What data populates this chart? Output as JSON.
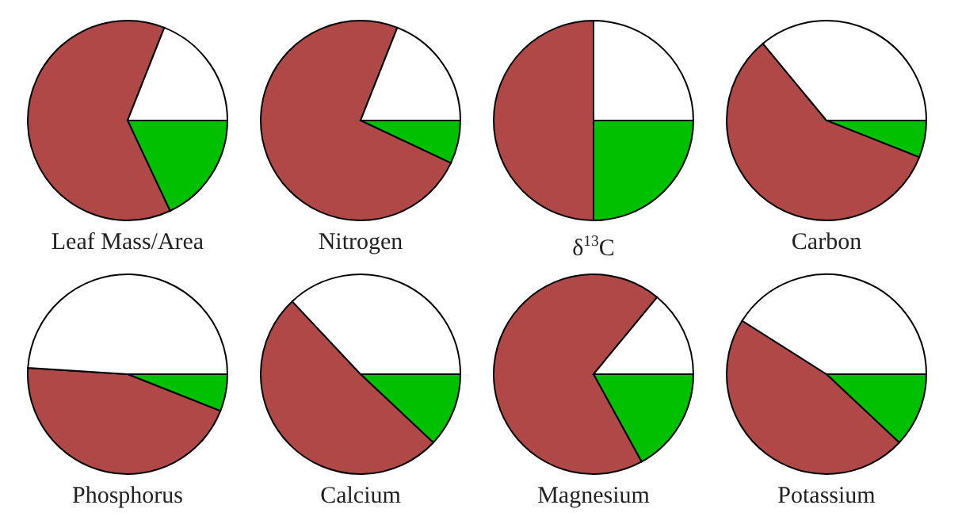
{
  "chart_data": [
    {
      "type": "pie",
      "title": "Leaf Mass/Area",
      "categories": [
        null,
        null,
        null
      ],
      "values": [
        18,
        63,
        19
      ],
      "colors": [
        "#00c000",
        "#b04848",
        "#ffffff"
      ]
    },
    {
      "type": "pie",
      "title": "Nitrogen",
      "categories": [
        null,
        null,
        null
      ],
      "values": [
        7,
        74,
        19
      ],
      "colors": [
        "#00c000",
        "#b04848",
        "#ffffff"
      ]
    },
    {
      "type": "pie",
      "title": "δ$^{13}$C",
      "categories": [
        null,
        null,
        null
      ],
      "values": [
        25,
        50,
        25
      ],
      "colors": [
        "#00c000",
        "#b04848",
        "#ffffff"
      ]
    },
    {
      "type": "pie",
      "title": "Carbon",
      "categories": [
        null,
        null,
        null
      ],
      "values": [
        6,
        58,
        36
      ],
      "colors": [
        "#00c000",
        "#b04848",
        "#ffffff"
      ]
    },
    {
      "type": "pie",
      "title": "Phosphorus",
      "categories": [
        null,
        null,
        null
      ],
      "values": [
        6,
        45,
        49
      ],
      "colors": [
        "#00c000",
        "#b04848",
        "#ffffff"
      ]
    },
    {
      "type": "pie",
      "title": "Calcium",
      "categories": [
        null,
        null,
        null
      ],
      "values": [
        12,
        51,
        37
      ],
      "colors": [
        "#00c000",
        "#b04848",
        "#ffffff"
      ]
    },
    {
      "type": "pie",
      "title": "Magnesium",
      "categories": [
        null,
        null,
        null
      ],
      "values": [
        17,
        69,
        14
      ],
      "colors": [
        "#00c000",
        "#b04848",
        "#ffffff"
      ]
    },
    {
      "type": "pie",
      "title": "Potassium",
      "categories": [
        null,
        null,
        null
      ],
      "values": [
        12,
        47,
        41
      ],
      "colors": [
        "#00c000",
        "#b04848",
        "#ffffff"
      ]
    }
  ]
}
